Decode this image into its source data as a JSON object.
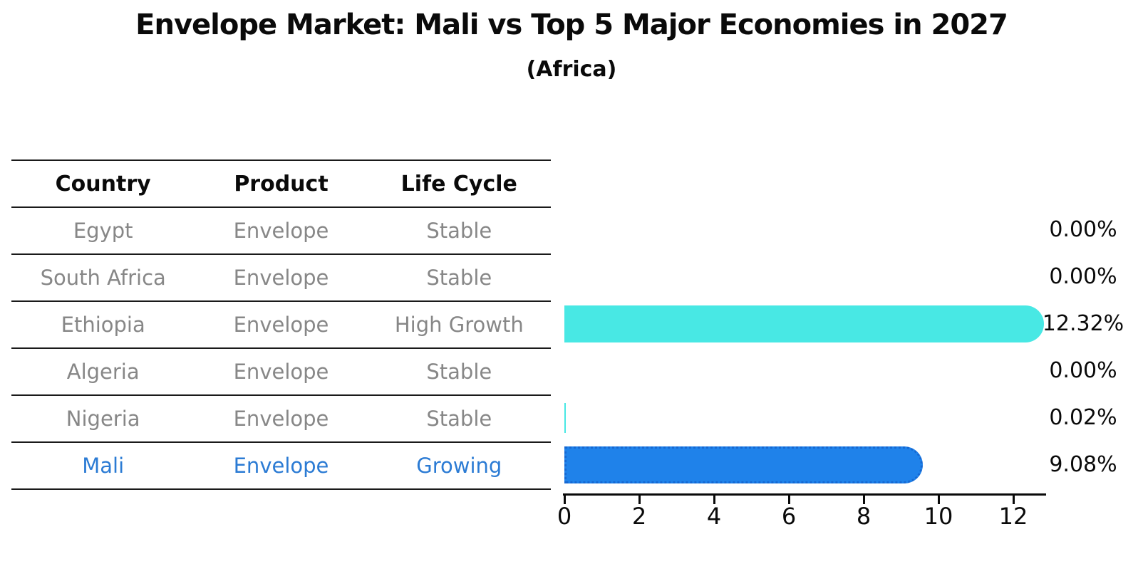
{
  "chart_data": {
    "type": "bar",
    "orientation": "horizontal",
    "title": "Envelope Market: Mali vs Top 5 Major Economies in 2027",
    "subtitle": "(Africa)",
    "categories": [
      "Egypt",
      "South Africa",
      "Ethiopia",
      "Algeria",
      "Nigeria",
      "Mali"
    ],
    "values": [
      0.0,
      0.0,
      12.32,
      0.0,
      0.02,
      9.08
    ],
    "value_labels": [
      "0.00%",
      "0.00%",
      "12.32%",
      "0.00%",
      "0.02%",
      "9.08%"
    ],
    "unit": "percent",
    "highlight_index": 5,
    "xticks": [
      0,
      2,
      4,
      6,
      8,
      10,
      12
    ],
    "xlim": [
      0,
      12.88
    ],
    "xlabel": "",
    "ylabel": "",
    "grid": false,
    "legend": "none",
    "colors": {
      "default_bar": "#48e8e4",
      "highlight_bar": "#1f82ea",
      "highlight_border": "#1668d2",
      "highlight_text": "#2b7bd4",
      "muted_text": "#878787",
      "axis": "#0a0a0a"
    }
  },
  "table": {
    "headers": [
      "Country",
      "Product",
      "Life Cycle"
    ],
    "rows": [
      {
        "country": "Egypt",
        "product": "Envelope",
        "life_cycle": "Stable",
        "highlight": false
      },
      {
        "country": "South Africa",
        "product": "Envelope",
        "life_cycle": "Stable",
        "highlight": false
      },
      {
        "country": "Ethiopia",
        "product": "Envelope",
        "life_cycle": "High Growth",
        "highlight": false
      },
      {
        "country": "Algeria",
        "product": "Envelope",
        "life_cycle": "Stable",
        "highlight": false
      },
      {
        "country": "Nigeria",
        "product": "Envelope",
        "life_cycle": "Stable",
        "highlight": false
      },
      {
        "country": "Mali",
        "product": "Envelope",
        "life_cycle": "Growing",
        "highlight": true
      }
    ]
  }
}
